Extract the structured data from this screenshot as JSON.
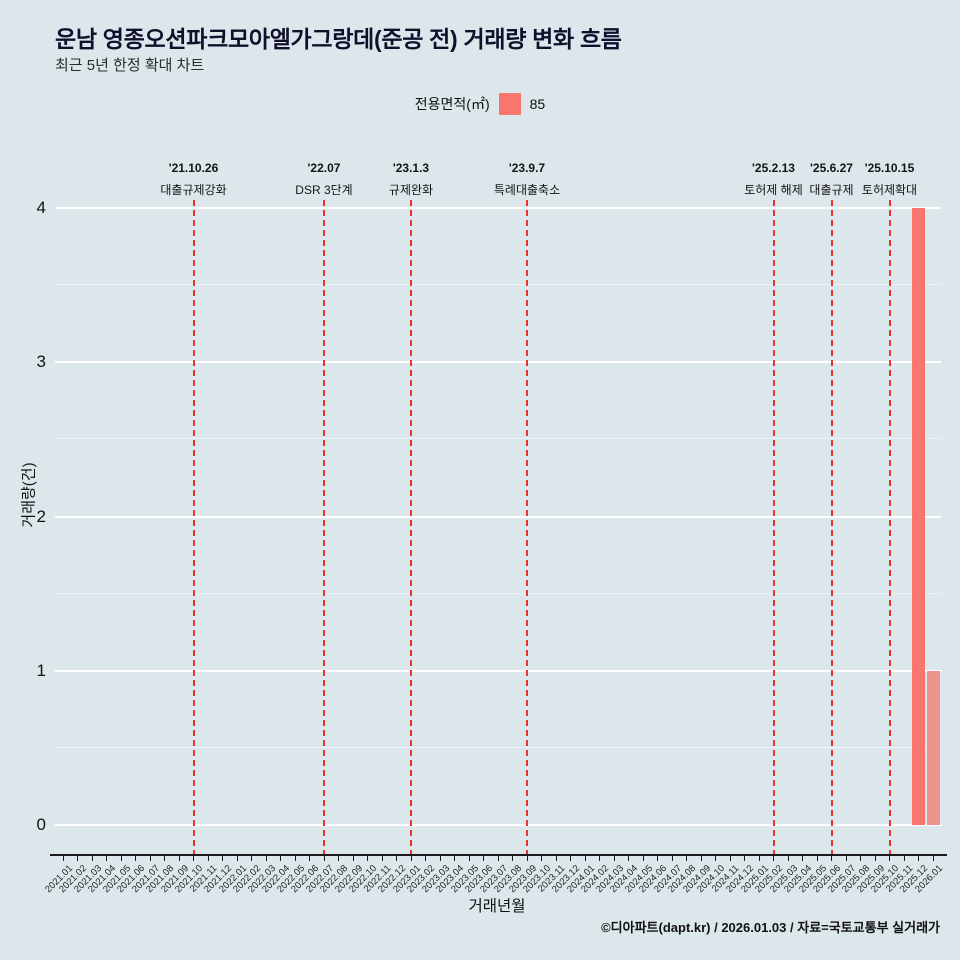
{
  "title": "운남 영종오션파크모아엘가그랑데(준공 전) 거래량 변화 흐름",
  "subtitle": "최근 5년 한정 확대 차트",
  "legend": {
    "label": "전용면적(㎡)",
    "value": "85",
    "color": "#f8766d"
  },
  "footer": "©디아파트(dapt.kr) / 2026.01.03 / 자료=국토교통부 실거래가",
  "chart_data": {
    "type": "bar",
    "title": "운남 영종오션파크모아엘가그랑데(준공 전) 거래량 변화 흐름",
    "xlabel": "거래년월",
    "ylabel": "거래량(건)",
    "ylim": [
      0,
      4
    ],
    "yticks": [
      0,
      1,
      2,
      3,
      4
    ],
    "grid": "white horizontal major lines on light blue panel",
    "legend_position": "top-center",
    "bar_color": "#f8766d",
    "bar_colors": {
      "2025.12": "#f8766d",
      "2026.01": "#ee928c"
    },
    "event_line_color": "#e8352c",
    "categories": [
      "2021.01",
      "2021.02",
      "2021.03",
      "2021.04",
      "2021.05",
      "2021.06",
      "2021.07",
      "2021.08",
      "2021.09",
      "2021.10",
      "2021.11",
      "2021.12",
      "2022.01",
      "2022.02",
      "2022.03",
      "2022.04",
      "2022.05",
      "2022.06",
      "2022.07",
      "2022.08",
      "2022.09",
      "2022.10",
      "2022.11",
      "2022.12",
      "2023.01",
      "2023.02",
      "2023.03",
      "2023.04",
      "2023.05",
      "2023.06",
      "2023.07",
      "2023.08",
      "2023.09",
      "2023.10",
      "2023.11",
      "2023.12",
      "2024.01",
      "2024.02",
      "2024.03",
      "2024.04",
      "2024.05",
      "2024.06",
      "2024.07",
      "2024.08",
      "2024.09",
      "2024.10",
      "2024.11",
      "2024.12",
      "2025.01",
      "2025.02",
      "2025.03",
      "2025.04",
      "2025.05",
      "2025.06",
      "2025.07",
      "2025.08",
      "2025.09",
      "2025.10",
      "2025.11",
      "2025.12",
      "2026.01"
    ],
    "values": [
      0,
      0,
      0,
      0,
      0,
      0,
      0,
      0,
      0,
      0,
      0,
      0,
      0,
      0,
      0,
      0,
      0,
      0,
      0,
      0,
      0,
      0,
      0,
      0,
      0,
      0,
      0,
      0,
      0,
      0,
      0,
      0,
      0,
      0,
      0,
      0,
      0,
      0,
      0,
      0,
      0,
      0,
      0,
      0,
      0,
      0,
      0,
      0,
      0,
      0,
      0,
      0,
      0,
      0,
      0,
      0,
      0,
      0,
      0,
      4,
      1
    ],
    "events": [
      {
        "date": "'21.10.26",
        "label": "대출규제강화",
        "month": "2021.10"
      },
      {
        "date": "'22.07",
        "label": "DSR 3단계",
        "month": "2022.07"
      },
      {
        "date": "'23.1.3",
        "label": "규제완화",
        "month": "2023.01"
      },
      {
        "date": "'23.9.7",
        "label": "특례대출축소",
        "month": "2023.09"
      },
      {
        "date": "'25.2.13",
        "label": "토허제 해제",
        "month": "2025.02"
      },
      {
        "date": "'25.6.27",
        "label": "대출규제",
        "month": "2025.06"
      },
      {
        "date": "'25.10.15",
        "label": "토허제확대",
        "month": "2025.10"
      }
    ]
  }
}
